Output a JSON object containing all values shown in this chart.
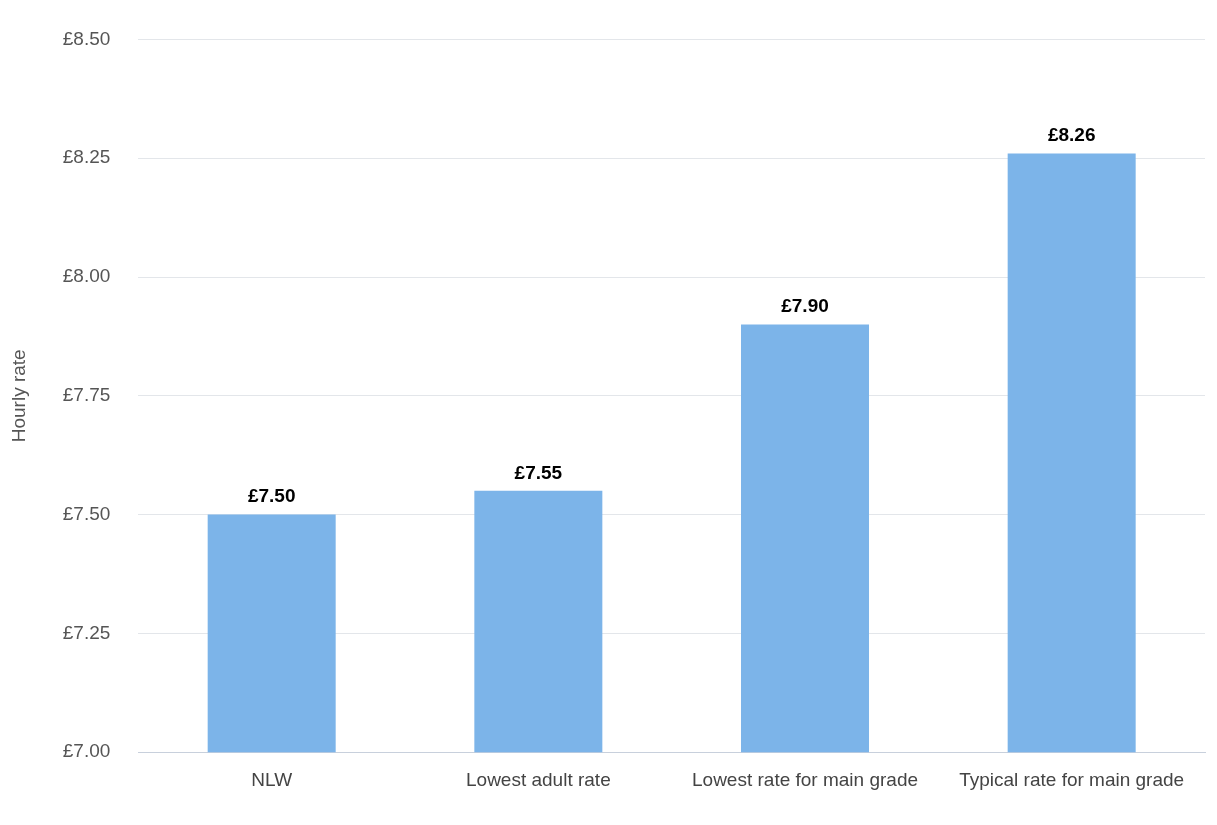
{
  "chart_data": {
    "type": "bar",
    "ylabel": "Hourly rate",
    "categories": [
      "NLW",
      "Lowest adult rate",
      "Lowest rate for main grade",
      "Typical rate for main grade"
    ],
    "values": [
      7.5,
      7.55,
      7.9,
      8.26
    ],
    "color": "#7cb4e9",
    "value_labels": [
      "£7.50",
      "£7.55",
      "£7.90",
      "£8.26"
    ],
    "ylim": [
      7.0,
      8.5
    ],
    "yticks": [
      {
        "value": 7.0,
        "label": "£7.00"
      },
      {
        "value": 7.25,
        "label": "£7.25"
      },
      {
        "value": 7.5,
        "label": "£7.50"
      },
      {
        "value": 7.75,
        "label": "£7.75"
      },
      {
        "value": 8.0,
        "label": "£8.00"
      },
      {
        "value": 8.25,
        "label": "£8.25"
      },
      {
        "value": 8.5,
        "label": "£8.50"
      }
    ],
    "grid": "y",
    "legend": false
  }
}
